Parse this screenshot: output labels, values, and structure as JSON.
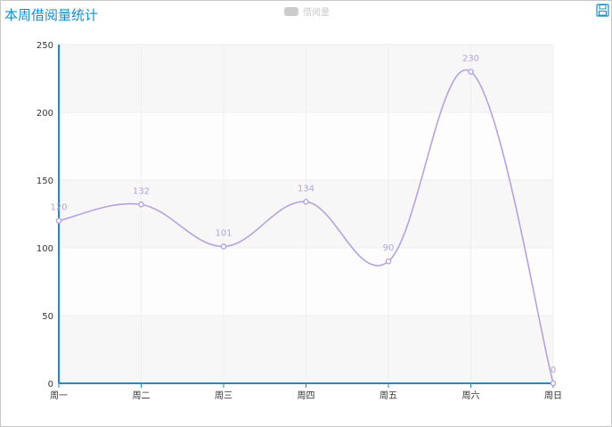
{
  "title": "本周借阅量统计",
  "toolbox": {
    "save_icon": "save-icon"
  },
  "colors": {
    "series": "#b6a2de",
    "axis": "#1a8cc6",
    "band": "#f7f7f7",
    "title": "#1a8cc6",
    "legend_off": "#cccccc"
  },
  "chart_data": {
    "type": "line",
    "smooth": true,
    "title": "本周借阅量统计",
    "categories": [
      "周一",
      "周二",
      "周三",
      "周四",
      "周五",
      "周六",
      "周日"
    ],
    "series": [
      {
        "name": "借阅量",
        "values": [
          120,
          132,
          101,
          134,
          90,
          230,
          0
        ]
      }
    ],
    "ylim": [
      0,
      250
    ],
    "yticks": [
      0,
      50,
      100,
      150,
      200,
      250
    ],
    "grid": true,
    "legend": "top-center"
  }
}
